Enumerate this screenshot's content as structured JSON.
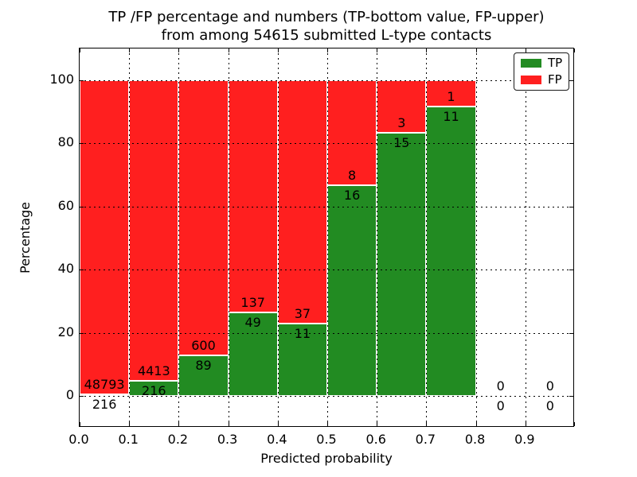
{
  "figure": {
    "title_line1": "TP /FP percentage and numbers (TP-bottom value, FP-upper)",
    "title_line2": "from among 54615 submitted L-type contacts"
  },
  "chart_data": {
    "type": "bar",
    "variant": "stacked-percentage-histogram",
    "title": "TP /FP percentage and numbers (TP-bottom value, FP-upper) from among 54615 submitted L-type contacts",
    "xlabel": "Predicted probability",
    "ylabel": "Percentage",
    "total_submitted": 54615,
    "contact_type": "L-type",
    "bin_width": 0.1,
    "bin_starts": [
      0.0,
      0.1,
      0.2,
      0.3,
      0.4,
      0.5,
      0.6,
      0.7,
      0.8,
      0.9
    ],
    "series": [
      {
        "name": "TP",
        "color": "#228b22",
        "counts": [
          216,
          216,
          89,
          49,
          11,
          16,
          15,
          11,
          0,
          0
        ]
      },
      {
        "name": "FP",
        "color": "#ff1f1f",
        "counts": [
          48793,
          4413,
          600,
          137,
          37,
          8,
          3,
          1,
          0,
          0
        ]
      }
    ],
    "tp_percent_of_bin": [
      0.44,
      4.67,
      12.92,
      26.34,
      22.92,
      66.67,
      83.33,
      91.67,
      0,
      0
    ],
    "annotation_rule": "FP count printed above green top, TP count printed below green top, per bin",
    "xticks": [
      "0.0",
      "0.1",
      "0.2",
      "0.3",
      "0.4",
      "0.5",
      "0.6",
      "0.7",
      "0.8",
      "0.9"
    ],
    "yticks": [
      "0",
      "20",
      "40",
      "60",
      "80",
      "100"
    ],
    "ytick_values": [
      0,
      20,
      40,
      60,
      80,
      100
    ],
    "xlim": [
      0.0,
      1.0
    ],
    "ylim": [
      -10,
      110
    ],
    "grid": {
      "style": "dotted",
      "color": "#000000"
    },
    "legend": {
      "position": "upper-right",
      "entries": [
        {
          "label": "TP",
          "color": "#228b22"
        },
        {
          "label": "FP",
          "color": "#ff1f1f"
        }
      ]
    },
    "colors": {
      "tp": "#228b22",
      "fp": "#ff1f1f",
      "background": "#ffffff",
      "bar_edge": "#ffffff"
    }
  }
}
